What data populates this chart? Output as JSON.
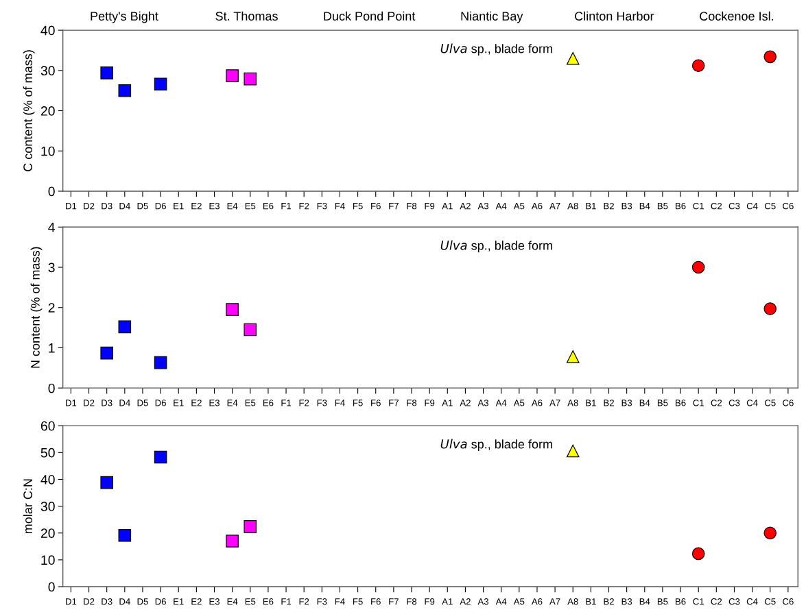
{
  "chart_data": [
    {
      "type": "scatter",
      "ylabel": "C content (% of mass)",
      "categories": [
        "D1",
        "D2",
        "D3",
        "D4",
        "D5",
        "D6",
        "E1",
        "E2",
        "E3",
        "E4",
        "E5",
        "E6",
        "F1",
        "F2",
        "F3",
        "F4",
        "F5",
        "F6",
        "F7",
        "F8",
        "F9",
        "A1",
        "A2",
        "A3",
        "A4",
        "A5",
        "A6",
        "A7",
        "A8",
        "B1",
        "B2",
        "B3",
        "B4",
        "B5",
        "B6",
        "C1",
        "C2",
        "C3",
        "C4",
        "C5",
        "C6"
      ],
      "ylim": [
        0,
        40
      ],
      "yticks": [
        0,
        10,
        20,
        30,
        40
      ],
      "annotations": [
        "Petty's Bight",
        "St. Thomas",
        "Duck Pond Point",
        "Niantic Bay",
        "Clinton Harbor",
        "Cockenoe Isl.",
        "Ulva sp., blade form"
      ],
      "series": [
        {
          "color": "#0000ff",
          "marker": "square",
          "values": [
            null,
            null,
            29.4,
            25.0,
            null,
            26.6,
            null,
            null,
            null,
            null,
            null,
            null,
            null,
            null,
            null,
            null,
            null,
            null,
            null,
            null,
            null,
            null,
            null,
            null,
            null,
            null,
            null,
            null,
            null,
            null,
            null,
            null,
            null,
            null,
            null,
            null,
            null,
            null,
            null,
            null,
            null
          ]
        },
        {
          "color": "#ff00ff",
          "marker": "square",
          "values": [
            null,
            null,
            null,
            null,
            null,
            null,
            null,
            null,
            null,
            28.7,
            27.9,
            null,
            null,
            null,
            null,
            null,
            null,
            null,
            null,
            null,
            null,
            null,
            null,
            null,
            null,
            null,
            null,
            null,
            null,
            null,
            null,
            null,
            null,
            null,
            null,
            null,
            null,
            null,
            null,
            null,
            null
          ]
        },
        {
          "color": "#ffff00",
          "marker": "triangle",
          "values": [
            null,
            null,
            null,
            null,
            null,
            null,
            null,
            null,
            null,
            null,
            null,
            null,
            null,
            null,
            null,
            null,
            null,
            null,
            null,
            null,
            null,
            null,
            null,
            null,
            null,
            null,
            null,
            null,
            33.0,
            null,
            null,
            null,
            null,
            null,
            null,
            null,
            null,
            null,
            null,
            null,
            null
          ]
        },
        {
          "color": "#ff0000",
          "marker": "circle",
          "values": [
            null,
            null,
            null,
            null,
            null,
            null,
            null,
            null,
            null,
            null,
            null,
            null,
            null,
            null,
            null,
            null,
            null,
            null,
            null,
            null,
            null,
            null,
            null,
            null,
            null,
            null,
            null,
            null,
            null,
            null,
            null,
            null,
            null,
            null,
            null,
            31.2,
            null,
            null,
            null,
            33.4,
            null
          ]
        }
      ]
    },
    {
      "type": "scatter",
      "ylabel": "N content (% of mass)",
      "categories": [
        "D1",
        "D2",
        "D3",
        "D4",
        "D5",
        "D6",
        "E1",
        "E2",
        "E3",
        "E4",
        "E5",
        "E6",
        "F1",
        "F2",
        "F3",
        "F4",
        "F5",
        "F6",
        "F7",
        "F8",
        "F9",
        "A1",
        "A2",
        "A3",
        "A4",
        "A5",
        "A6",
        "A7",
        "A8",
        "B1",
        "B2",
        "B3",
        "B4",
        "B5",
        "B6",
        "C1",
        "C2",
        "C3",
        "C4",
        "C5",
        "C6"
      ],
      "ylim": [
        0,
        4
      ],
      "yticks": [
        0,
        1,
        2,
        3,
        4
      ],
      "annotations": [
        "Ulva sp., blade form"
      ],
      "series": [
        {
          "color": "#0000ff",
          "marker": "square",
          "values": [
            null,
            null,
            0.87,
            1.52,
            null,
            0.63,
            null,
            null,
            null,
            null,
            null,
            null,
            null,
            null,
            null,
            null,
            null,
            null,
            null,
            null,
            null,
            null,
            null,
            null,
            null,
            null,
            null,
            null,
            null,
            null,
            null,
            null,
            null,
            null,
            null,
            null,
            null,
            null,
            null,
            null,
            null
          ]
        },
        {
          "color": "#ff00ff",
          "marker": "square",
          "values": [
            null,
            null,
            null,
            null,
            null,
            null,
            null,
            null,
            null,
            1.95,
            1.45,
            null,
            null,
            null,
            null,
            null,
            null,
            null,
            null,
            null,
            null,
            null,
            null,
            null,
            null,
            null,
            null,
            null,
            null,
            null,
            null,
            null,
            null,
            null,
            null,
            null,
            null,
            null,
            null,
            null,
            null
          ]
        },
        {
          "color": "#ffff00",
          "marker": "triangle",
          "values": [
            null,
            null,
            null,
            null,
            null,
            null,
            null,
            null,
            null,
            null,
            null,
            null,
            null,
            null,
            null,
            null,
            null,
            null,
            null,
            null,
            null,
            null,
            null,
            null,
            null,
            null,
            null,
            null,
            0.78,
            null,
            null,
            null,
            null,
            null,
            null,
            null,
            null,
            null,
            null,
            null,
            null
          ]
        },
        {
          "color": "#ff0000",
          "marker": "circle",
          "values": [
            null,
            null,
            null,
            null,
            null,
            null,
            null,
            null,
            null,
            null,
            null,
            null,
            null,
            null,
            null,
            null,
            null,
            null,
            null,
            null,
            null,
            null,
            null,
            null,
            null,
            null,
            null,
            null,
            null,
            null,
            null,
            null,
            null,
            null,
            null,
            3.0,
            null,
            null,
            null,
            1.97,
            null
          ]
        }
      ]
    },
    {
      "type": "scatter",
      "ylabel": "molar C:N",
      "categories": [
        "D1",
        "D2",
        "D3",
        "D4",
        "D5",
        "D6",
        "E1",
        "E2",
        "E3",
        "E4",
        "E5",
        "E6",
        "F1",
        "F2",
        "F3",
        "F4",
        "F5",
        "F6",
        "F7",
        "F8",
        "F9",
        "A1",
        "A2",
        "A3",
        "A4",
        "A5",
        "A6",
        "A7",
        "A8",
        "B1",
        "B2",
        "B3",
        "B4",
        "B5",
        "B6",
        "C1",
        "C2",
        "C3",
        "C4",
        "C5",
        "C6"
      ],
      "ylim": [
        0,
        60
      ],
      "yticks": [
        0,
        10,
        20,
        30,
        40,
        50,
        60
      ],
      "annotations": [
        "Ulva sp., blade form"
      ],
      "series": [
        {
          "color": "#0000ff",
          "marker": "square",
          "values": [
            null,
            null,
            38.8,
            19.1,
            null,
            48.3,
            null,
            null,
            null,
            null,
            null,
            null,
            null,
            null,
            null,
            null,
            null,
            null,
            null,
            null,
            null,
            null,
            null,
            null,
            null,
            null,
            null,
            null,
            null,
            null,
            null,
            null,
            null,
            null,
            null,
            null,
            null,
            null,
            null,
            null,
            null
          ]
        },
        {
          "color": "#ff00ff",
          "marker": "square",
          "values": [
            null,
            null,
            null,
            null,
            null,
            null,
            null,
            null,
            null,
            17.0,
            22.4,
            null,
            null,
            null,
            null,
            null,
            null,
            null,
            null,
            null,
            null,
            null,
            null,
            null,
            null,
            null,
            null,
            null,
            null,
            null,
            null,
            null,
            null,
            null,
            null,
            null,
            null,
            null,
            null,
            null,
            null
          ]
        },
        {
          "color": "#ffff00",
          "marker": "triangle",
          "values": [
            null,
            null,
            null,
            null,
            null,
            null,
            null,
            null,
            null,
            null,
            null,
            null,
            null,
            null,
            null,
            null,
            null,
            null,
            null,
            null,
            null,
            null,
            null,
            null,
            null,
            null,
            null,
            null,
            50.6,
            null,
            null,
            null,
            null,
            null,
            null,
            null,
            null,
            null,
            null,
            null,
            null
          ]
        },
        {
          "color": "#ff0000",
          "marker": "circle",
          "values": [
            null,
            null,
            null,
            null,
            null,
            null,
            null,
            null,
            null,
            null,
            null,
            null,
            null,
            null,
            null,
            null,
            null,
            null,
            null,
            null,
            null,
            null,
            null,
            null,
            null,
            null,
            null,
            null,
            null,
            null,
            null,
            null,
            null,
            null,
            null,
            12.3,
            null,
            null,
            null,
            20.0,
            null
          ]
        }
      ]
    }
  ]
}
